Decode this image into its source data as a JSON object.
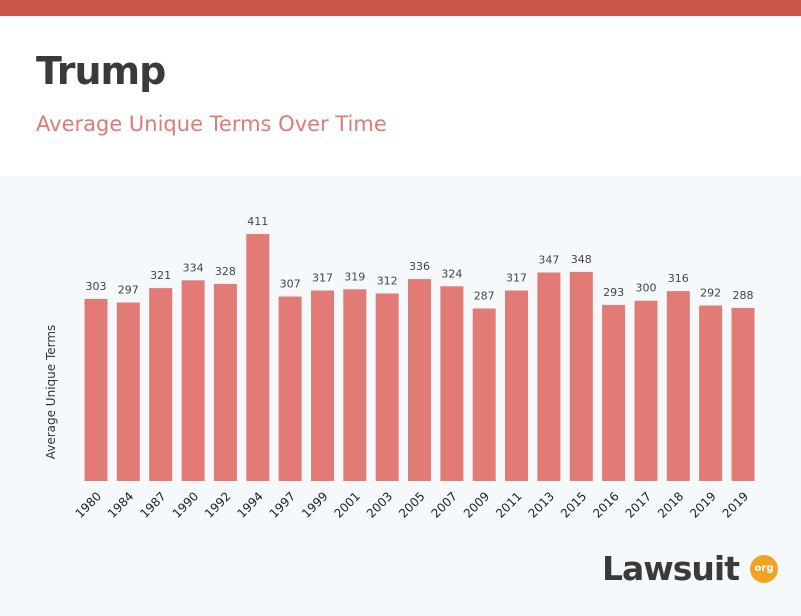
{
  "header": {
    "title": "Trump",
    "subtitle": "Average Unique Terms Over Time"
  },
  "colors": {
    "top_bar": "#c9544a",
    "bar": "#e27a76",
    "subtitle": "#e07a77",
    "logo_badge": "#f0a323"
  },
  "chart_data": {
    "type": "bar",
    "categories": [
      "1980",
      "1984",
      "1987",
      "1990",
      "1992",
      "1994",
      "1997",
      "1999",
      "2001",
      "2003",
      "2005",
      "2007",
      "2009",
      "2011",
      "2013",
      "2015",
      "2016",
      "2017",
      "2018",
      "2019",
      "2019"
    ],
    "values": [
      303,
      297,
      321,
      334,
      328,
      411,
      307,
      317,
      319,
      312,
      336,
      324,
      287,
      317,
      347,
      348,
      293,
      300,
      316,
      292,
      288
    ],
    "title": "Trump",
    "subtitle": "Average Unique Terms Over Time",
    "xlabel": "",
    "ylabel": "Average Unique Terms",
    "ylim": [
      0,
      411
    ],
    "grid": false,
    "legend": "none",
    "data_labels": true
  },
  "logo": {
    "text": "Lawsuit",
    "badge": "org",
    "icon": "lawsuit-org-logo"
  }
}
